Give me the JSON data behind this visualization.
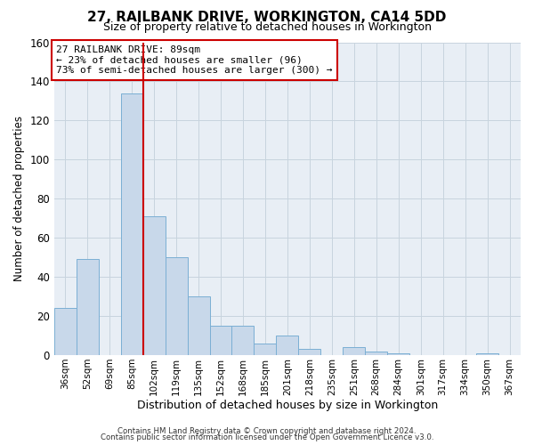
{
  "title": "27, RAILBANK DRIVE, WORKINGTON, CA14 5DD",
  "subtitle": "Size of property relative to detached houses in Workington",
  "xlabel": "Distribution of detached houses by size in Workington",
  "ylabel": "Number of detached properties",
  "bin_labels": [
    "36sqm",
    "52sqm",
    "69sqm",
    "85sqm",
    "102sqm",
    "119sqm",
    "135sqm",
    "152sqm",
    "168sqm",
    "185sqm",
    "201sqm",
    "218sqm",
    "235sqm",
    "251sqm",
    "268sqm",
    "284sqm",
    "301sqm",
    "317sqm",
    "334sqm",
    "350sqm",
    "367sqm"
  ],
  "bar_values": [
    24,
    49,
    0,
    134,
    71,
    50,
    30,
    15,
    15,
    6,
    10,
    3,
    0,
    4,
    2,
    1,
    0,
    0,
    0,
    1,
    0
  ],
  "bar_color": "#c8d8ea",
  "bar_edge_color": "#7bafd4",
  "vline_color": "#cc0000",
  "annotation_text": "27 RAILBANK DRIVE: 89sqm\n← 23% of detached houses are smaller (96)\n73% of semi-detached houses are larger (300) →",
  "annotation_box_color": "#ffffff",
  "annotation_box_edge": "#cc0000",
  "ylim": [
    0,
    160
  ],
  "yticks": [
    0,
    20,
    40,
    60,
    80,
    100,
    120,
    140,
    160
  ],
  "footer1": "Contains HM Land Registry data © Crown copyright and database right 2024.",
  "footer2": "Contains public sector information licensed under the Open Government Licence v3.0.",
  "bg_color": "#ffffff",
  "plot_bg_color": "#e8eef5",
  "grid_color": "#c8d4de"
}
